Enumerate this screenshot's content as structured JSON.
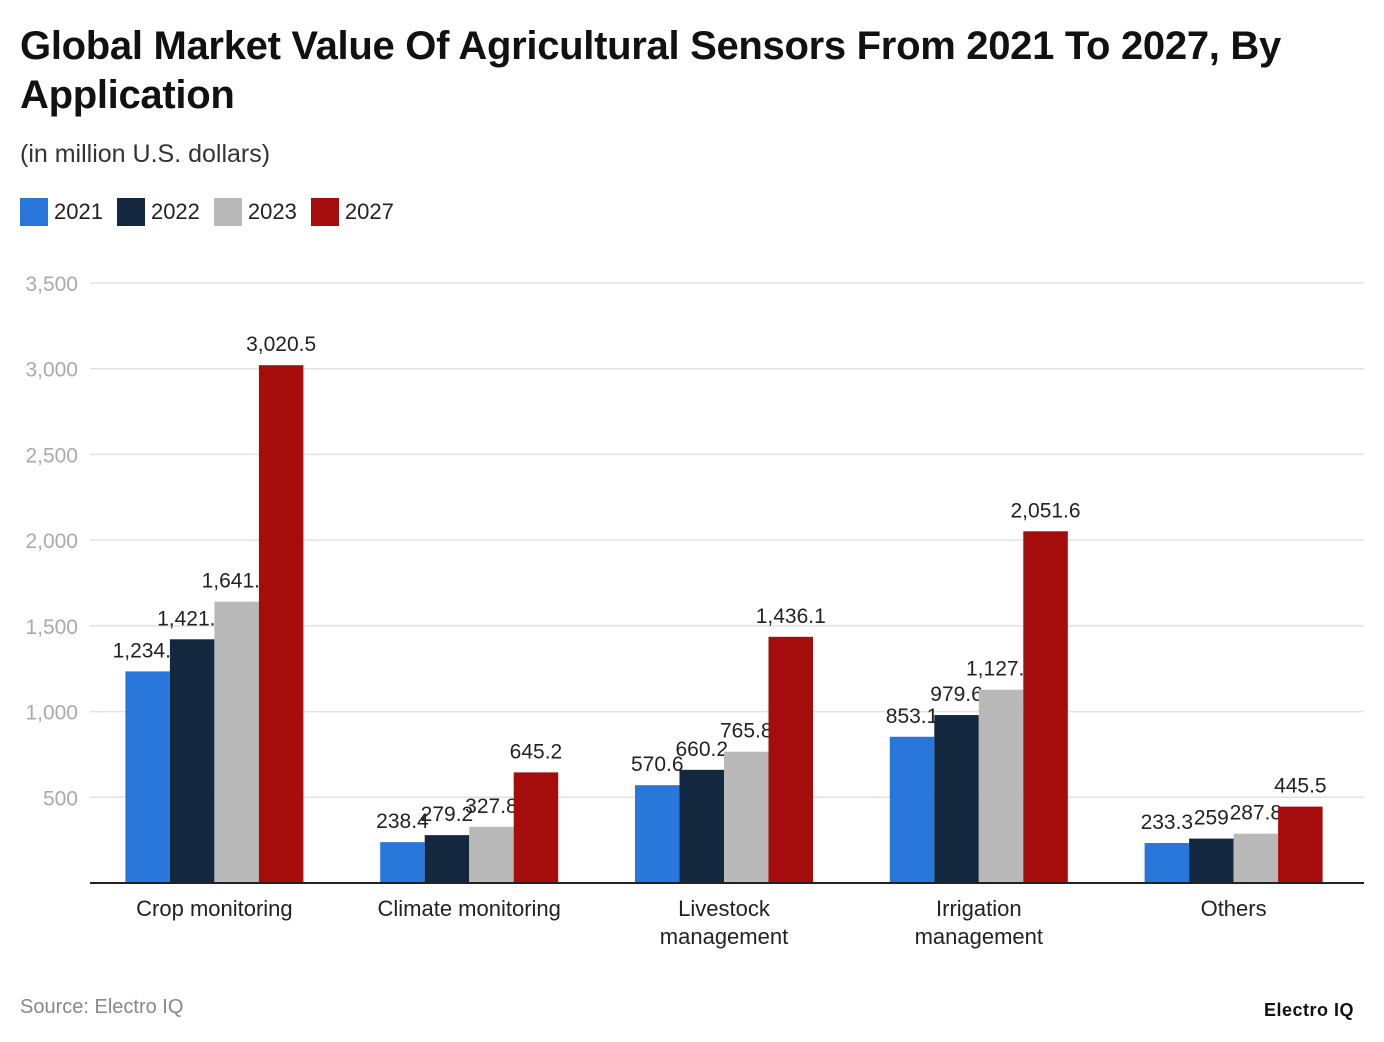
{
  "title": "Global Market Value Of Agricultural Sensors From 2021 To 2027, By Application",
  "subtitle": "(in million U.S. dollars)",
  "source": "Source: Electro IQ",
  "logo": "Electro IQ",
  "chart_data": {
    "type": "bar",
    "title": "Global Market Value Of Agricultural Sensors From 2021 To 2027, By Application",
    "ylabel": "(in million U.S. dollars)",
    "categories": [
      "Crop monitoring",
      "Climate monitoring",
      "Livestock management",
      "Irrigation management",
      "Others"
    ],
    "series": [
      {
        "name": "2021",
        "color": "#2a77dc",
        "values": [
          1234.5,
          238.4,
          570.6,
          853.1,
          233.3
        ],
        "labels": [
          "1,234.5",
          "238.4",
          "570.6",
          "853.1",
          "233.3"
        ]
      },
      {
        "name": "2022",
        "color": "#13273f",
        "values": [
          1421.6,
          279.2,
          660.2,
          979.6,
          259
        ],
        "labels": [
          "1,421.6",
          "279.2",
          "660.2",
          "979.6",
          "259"
        ]
      },
      {
        "name": "2023",
        "color": "#b9b9b9",
        "values": [
          1641.2,
          327.8,
          765.8,
          1127.6,
          287.8
        ],
        "labels": [
          "1,641.2",
          "327.8",
          "765.8",
          "1,127.6",
          "287.8"
        ]
      },
      {
        "name": "2027",
        "color": "#a50d0d",
        "values": [
          3020.5,
          645.2,
          1436.1,
          2051.6,
          445.5
        ],
        "labels": [
          "3,020.5",
          "645.2",
          "1,436.1",
          "2,051.6",
          "445.5"
        ]
      }
    ],
    "ylim": [
      0,
      3500
    ],
    "yticks": [
      500,
      1000,
      1500,
      2000,
      2500,
      3000,
      3500
    ],
    "ytick_labels": [
      "500",
      "1,000",
      "1,500",
      "2,000",
      "2,500",
      "3,000",
      "3,500"
    ],
    "grid": true,
    "legend": "top-left"
  }
}
